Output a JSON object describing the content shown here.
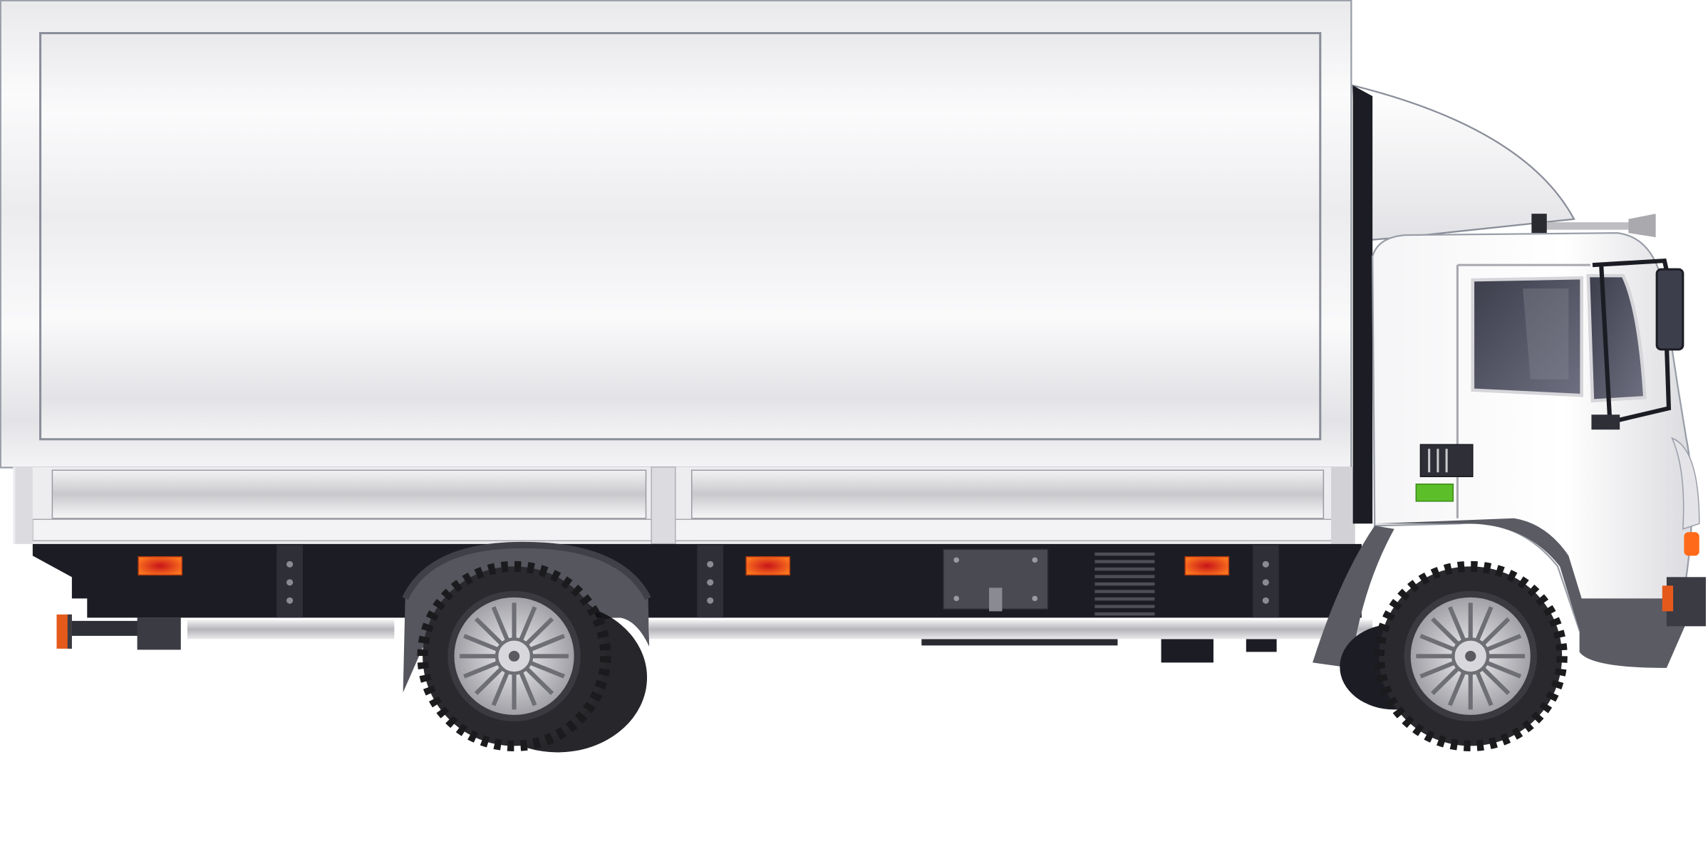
{
  "scene": {
    "subject": "white-box-truck",
    "view": "side",
    "facing": "right"
  },
  "colors": {
    "background": "#ffffff",
    "box_body": "#f2f2f3",
    "box_outline": "#8a8e99",
    "chassis": "#1c1d24",
    "fender": "#5a5b63",
    "cab_body": "#f4f4f6",
    "window_glass": "#4a4b5a",
    "marker_light": "#ff6a1a",
    "green_badge": "#5cbf2a",
    "rim": "#c9c9cc",
    "tire": "#2a2a2e"
  },
  "icons": {
    "mirror": "side-mirror-icon",
    "horn": "air-horn-icon",
    "wheel": "wheel-icon"
  }
}
